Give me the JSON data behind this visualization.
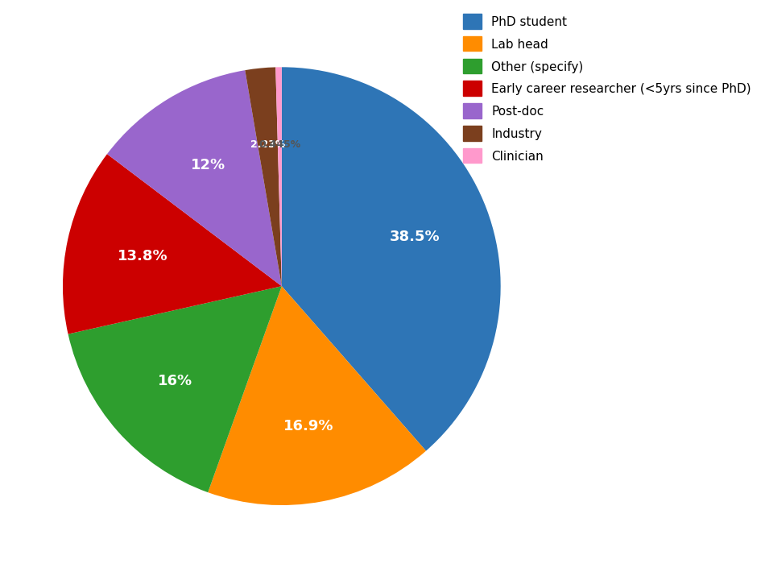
{
  "labels": [
    "PhD student",
    "Lab head",
    "Other (specify)",
    "Early career researcher (<5yrs since PhD)",
    "Post-doc",
    "Industry",
    "Clinician"
  ],
  "values": [
    38.5,
    16.9,
    16.0,
    13.8,
    12.0,
    2.23,
    0.445
  ],
  "colors": [
    "#2E75B6",
    "#FF8C00",
    "#2E9E2E",
    "#CC0000",
    "#9966CC",
    "#7B3F1E",
    "#FF99CC"
  ],
  "autopct_labels": [
    "38.5%",
    "16.9%",
    "16%",
    "13.8%",
    "12%",
    "2.23%",
    "0.445%"
  ],
  "startangle": 90,
  "background_color": "#FFFFFF",
  "legend_fontsize": 11,
  "label_fontsize": 13
}
